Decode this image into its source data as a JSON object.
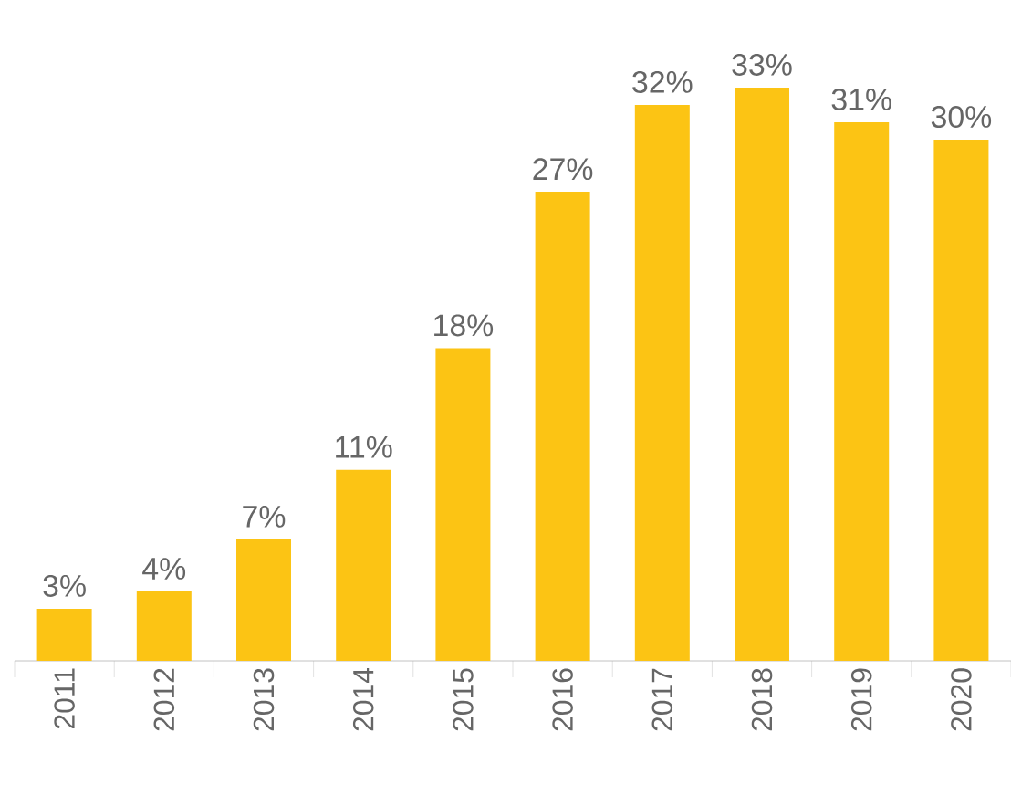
{
  "chart_data": {
    "type": "bar",
    "categories": [
      "2011",
      "2012",
      "2013",
      "2014",
      "2015",
      "2016",
      "2017",
      "2018",
      "2019",
      "2020"
    ],
    "values": [
      3,
      4,
      7,
      11,
      18,
      27,
      32,
      33,
      31,
      30
    ],
    "value_labels": [
      "3%",
      "4%",
      "7%",
      "11%",
      "18%",
      "27%",
      "32%",
      "33%",
      "31%",
      "30%"
    ],
    "color": "#fcc414",
    "tick_labels": "x"
  }
}
